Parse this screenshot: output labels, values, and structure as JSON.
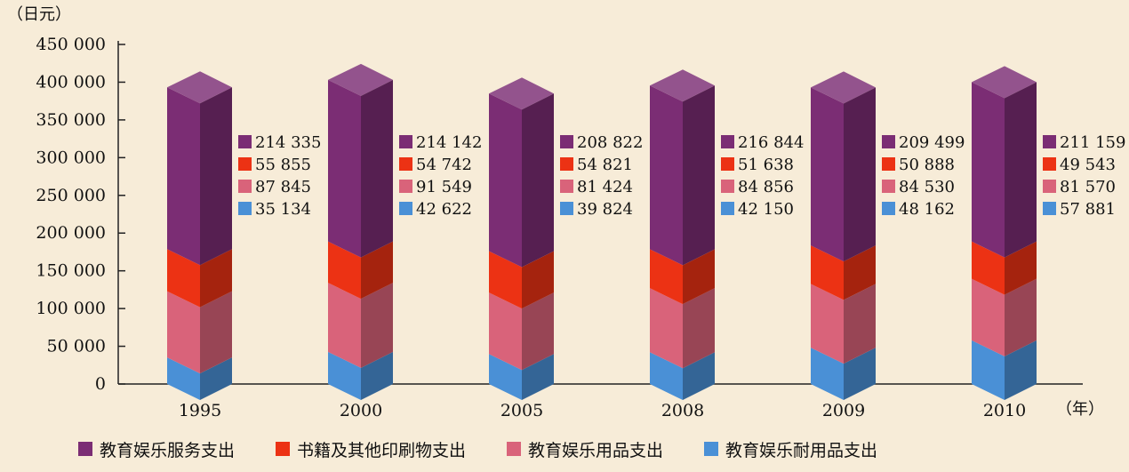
{
  "chart_data": {
    "type": "bar",
    "stacked": true,
    "ylabel": "（日元）",
    "xlabel": "（年）",
    "ylim": [
      0,
      450000
    ],
    "yticks": [
      0,
      50000,
      100000,
      150000,
      200000,
      250000,
      300000,
      350000,
      400000,
      450000
    ],
    "ytick_labels": [
      "0",
      "50 000",
      "100 000",
      "150 000",
      "200 000",
      "250 000",
      "300 000",
      "350 000",
      "400 000",
      "450 000"
    ],
    "categories": [
      "1995",
      "2000",
      "2005",
      "2008",
      "2009",
      "2010"
    ],
    "series": [
      {
        "name": "教育娱乐耐用品支出",
        "color": "#4a90d6",
        "values": [
          35134,
          42622,
          39824,
          42150,
          48162,
          57881
        ],
        "labels": [
          "35 134",
          "42 622",
          "39 824",
          "42 150",
          "48 162",
          "57 881"
        ]
      },
      {
        "name": "教育娱乐用品支出",
        "color": "#d9637a",
        "values": [
          87845,
          91549,
          81424,
          84856,
          84530,
          81570
        ],
        "labels": [
          "87 845",
          "91 549",
          "81 424",
          "84 856",
          "84 530",
          "81 570"
        ]
      },
      {
        "name": "书籍及其他印刷物支出",
        "color": "#ec3214",
        "values": [
          55855,
          54742,
          54821,
          51638,
          50888,
          49543
        ],
        "labels": [
          "55 855",
          "54 742",
          "54 821",
          "51 638",
          "50 888",
          "49 543"
        ]
      },
      {
        "name": "教育娱乐服务支出",
        "color": "#7b2d74",
        "values": [
          214335,
          214142,
          208822,
          216844,
          209499,
          211159
        ],
        "labels": [
          "214 335",
          "214 142",
          "208 822",
          "216 844",
          "209 499",
          "211 159"
        ]
      }
    ],
    "legend_order": [
      "教育娱乐服务支出",
      "书籍及其他印刷物支出",
      "教育娱乐用品支出",
      "教育娱乐耐用品支出"
    ],
    "legend_position": "bottom",
    "grid": false
  }
}
